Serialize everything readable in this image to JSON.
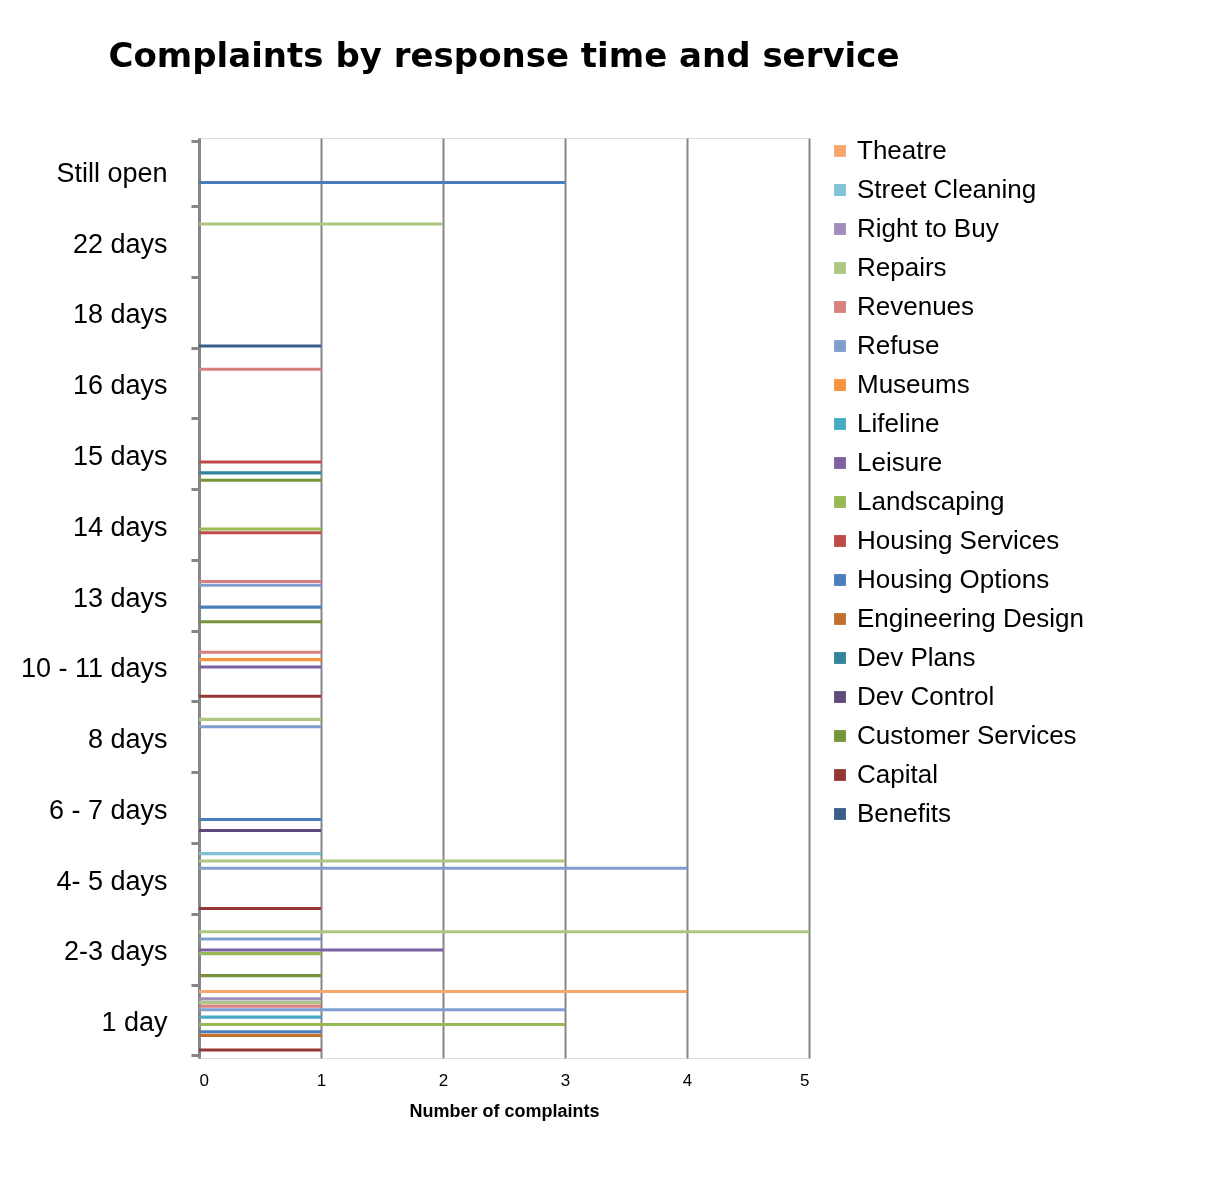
{
  "chart_data": {
    "type": "bar",
    "orientation": "horizontal",
    "title": "Complaints by response time and service",
    "xlabel": "Number of complaints",
    "categories": [
      "Still open",
      "22 days",
      "18 days",
      "16 days",
      "15 days",
      "14 days",
      "13 days",
      "10 - 11 days",
      "8 days",
      "6 - 7 days",
      "4- 5 days",
      "2-3 days",
      "1 day"
    ],
    "xlim": [
      0,
      5
    ],
    "xticks": [
      0,
      1,
      2,
      3,
      4,
      5
    ],
    "grid": "x",
    "legend": "right",
    "series": [
      {
        "name": "Benefits",
        "color": "#385d8a",
        "values": [
          null,
          null,
          1,
          null,
          null,
          null,
          null,
          null,
          null,
          null,
          null,
          null,
          null
        ]
      },
      {
        "name": "Capital",
        "color": "#953735",
        "values": [
          null,
          null,
          null,
          null,
          null,
          null,
          null,
          1,
          null,
          null,
          1,
          null,
          1
        ]
      },
      {
        "name": "Customer Services",
        "color": "#77933c",
        "values": [
          null,
          null,
          null,
          null,
          1,
          null,
          1,
          null,
          null,
          null,
          null,
          1,
          null
        ]
      },
      {
        "name": "Dev Control",
        "color": "#604a7b",
        "values": [
          null,
          null,
          null,
          null,
          null,
          null,
          null,
          null,
          null,
          1,
          null,
          null,
          null
        ]
      },
      {
        "name": "Dev Plans",
        "color": "#31859c",
        "values": [
          null,
          null,
          null,
          null,
          1,
          null,
          null,
          null,
          null,
          null,
          null,
          null,
          null
        ]
      },
      {
        "name": "Engineering Design",
        "color": "#c0712e",
        "values": [
          null,
          null,
          null,
          null,
          null,
          null,
          null,
          null,
          null,
          null,
          null,
          null,
          1
        ]
      },
      {
        "name": "Housing Options",
        "color": "#4a7ebb",
        "values": [
          3,
          null,
          null,
          null,
          null,
          null,
          1,
          null,
          null,
          1,
          null,
          null,
          1
        ]
      },
      {
        "name": "Housing Services",
        "color": "#be4b48",
        "values": [
          null,
          null,
          null,
          null,
          1,
          1,
          null,
          null,
          null,
          null,
          null,
          null,
          null
        ]
      },
      {
        "name": "Landscaping",
        "color": "#98b954",
        "values": [
          null,
          null,
          null,
          null,
          null,
          1,
          null,
          null,
          null,
          null,
          null,
          1,
          3
        ]
      },
      {
        "name": "Leisure",
        "color": "#7d60a0",
        "values": [
          null,
          null,
          null,
          null,
          null,
          null,
          null,
          1,
          null,
          null,
          null,
          2,
          null
        ]
      },
      {
        "name": "Lifeline",
        "color": "#46aac5",
        "values": [
          null,
          null,
          null,
          null,
          null,
          null,
          null,
          null,
          null,
          null,
          null,
          null,
          1
        ]
      },
      {
        "name": "Museums",
        "color": "#f69240",
        "values": [
          null,
          null,
          null,
          null,
          null,
          null,
          null,
          1,
          null,
          null,
          null,
          null,
          null
        ]
      },
      {
        "name": "Refuse",
        "color": "#7f9fcf",
        "values": [
          null,
          null,
          null,
          null,
          null,
          null,
          1,
          null,
          1,
          null,
          4,
          1,
          3
        ]
      },
      {
        "name": "Revenues",
        "color": "#d7807e",
        "values": [
          null,
          null,
          null,
          1,
          null,
          null,
          1,
          1,
          null,
          null,
          null,
          null,
          1
        ]
      },
      {
        "name": "Repairs",
        "color": "#adc681",
        "values": [
          null,
          2,
          null,
          null,
          null,
          null,
          null,
          null,
          1,
          null,
          3,
          5,
          1
        ]
      },
      {
        "name": "Right to Buy",
        "color": "#9f8dbb",
        "values": [
          null,
          null,
          null,
          null,
          null,
          null,
          null,
          null,
          null,
          null,
          null,
          null,
          1
        ]
      },
      {
        "name": "Street Cleaning",
        "color": "#7fc1d6",
        "values": [
          null,
          null,
          null,
          null,
          null,
          null,
          null,
          null,
          null,
          null,
          1,
          null,
          null
        ]
      },
      {
        "name": "Theatre",
        "color": "#f9a66e",
        "values": [
          null,
          null,
          null,
          null,
          null,
          null,
          null,
          null,
          null,
          null,
          null,
          null,
          4
        ]
      }
    ]
  }
}
